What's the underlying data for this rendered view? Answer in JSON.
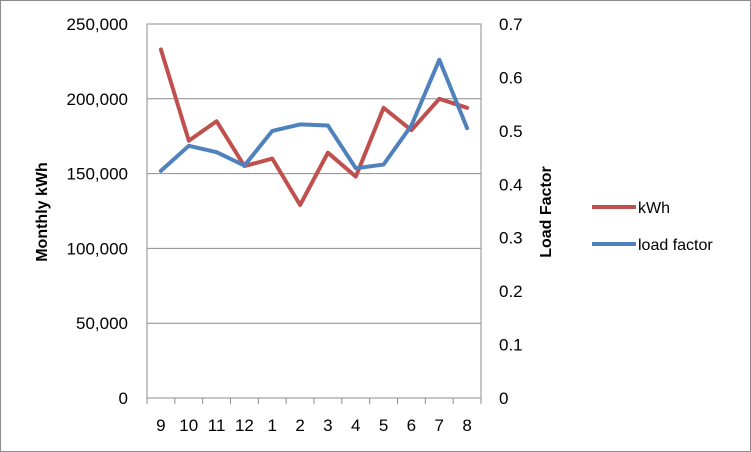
{
  "chart_data": {
    "type": "line",
    "categories": [
      "9",
      "10",
      "11",
      "12",
      "1",
      "2",
      "3",
      "4",
      "5",
      "6",
      "7",
      "8"
    ],
    "ylabel": "Monthly kWh",
    "y2label": "Load Factor",
    "ylim": [
      0,
      250000
    ],
    "y2lim": [
      0,
      0.7
    ],
    "yticks": [
      "0",
      "50,000",
      "100,000",
      "150,000",
      "200,000",
      "250,000"
    ],
    "y2ticks": [
      "0",
      "0.1",
      "0.2",
      "0.3",
      "0.4",
      "0.5",
      "0.6",
      "0.7"
    ],
    "grid": "horizontal",
    "legend_position": "right",
    "series": [
      {
        "name": "kWh",
        "axis": "left",
        "color": "#C0504D",
        "values": [
          233000,
          172000,
          185000,
          155000,
          160000,
          129000,
          164000,
          148000,
          194000,
          179000,
          200000,
          194000
        ]
      },
      {
        "name": "load factor",
        "axis": "right",
        "color": "#4F81BD",
        "values": [
          0.425,
          0.472,
          0.46,
          0.435,
          0.5,
          0.512,
          0.51,
          0.43,
          0.437,
          0.51,
          0.633,
          0.505
        ]
      }
    ]
  }
}
